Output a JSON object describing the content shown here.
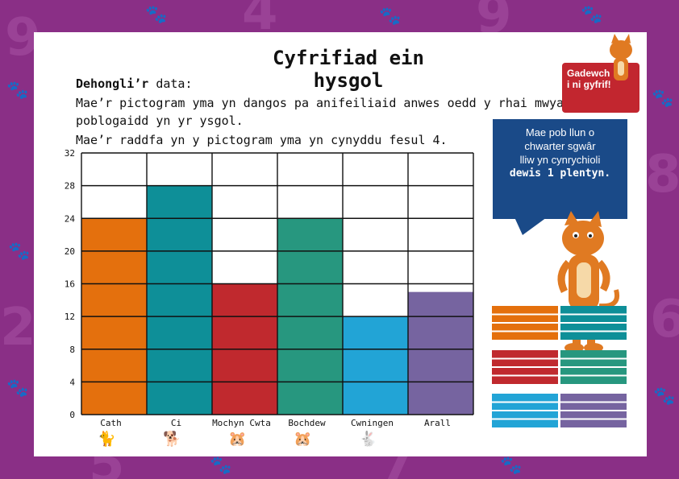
{
  "page": {
    "title": "Cyfrifiad ein hysgol",
    "intro_label": "Dehongli’r",
    "intro_text": "data:",
    "line1": "Mae’r pictogram yma yn dangos pa anifeiliaid anwes oedd y rhai mwyaf",
    "line2": "poblogaidd yn yr ysgol.",
    "line3": "Mae’r raddfa yn y pictogram yma yn cynyddu fesul 4.",
    "badge_line1": "Gadewch",
    "badge_line2": "i ni gyfrif!",
    "bubble_line1": "Mae pob llun o",
    "bubble_line2": "chwarter sgwâr",
    "bubble_line3": "lliw yn cynrychioli",
    "bubble_line4": "dewis 1 plentyn."
  },
  "colors": {
    "background": "#8a2f86",
    "bubble": "#1a4a88",
    "badge": "#c2262f"
  },
  "chart_data": {
    "type": "bar",
    "title": "Cyfrifiad ein hysgol",
    "xlabel": "",
    "ylabel": "",
    "ylim": [
      0,
      32
    ],
    "yticks": [
      "0",
      "4",
      "8",
      "12",
      "16",
      "20",
      "24",
      "28",
      "32"
    ],
    "grid": true,
    "categories": [
      "Cath",
      "Ci",
      "Mochyn Cwta",
      "Bochdew",
      "Cwningen",
      "Arall"
    ],
    "values": [
      24,
      28,
      16,
      24,
      12,
      15
    ],
    "bar_colors": [
      "#e4700d",
      "#0e8f98",
      "#c0292e",
      "#27977f",
      "#22a4d6",
      "#7664a0"
    ],
    "legend_colors": [
      "#e4700d",
      "#0e8f98",
      "#c0292e",
      "#27977f",
      "#22a4d6",
      "#7664a0"
    ]
  }
}
